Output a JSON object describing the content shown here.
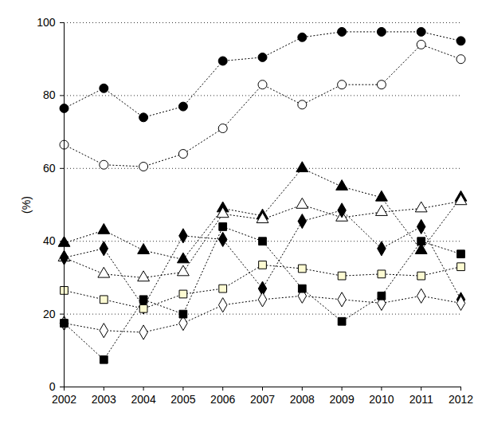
{
  "chart_data": {
    "type": "line",
    "y_label": "(%)",
    "x": [
      2002,
      2003,
      2004,
      2005,
      2006,
      2007,
      2008,
      2009,
      2010,
      2011,
      2012
    ],
    "xlim": [
      2002,
      2012
    ],
    "xticks": [
      2002,
      2003,
      2004,
      2005,
      2006,
      2007,
      2008,
      2009,
      2010,
      2011,
      2012
    ],
    "ylim": [
      0,
      100
    ],
    "yticks": [
      0,
      20,
      40,
      60,
      80,
      100
    ],
    "grid": true,
    "series": [
      {
        "color": "#000000",
        "marker": "circle",
        "line_style": "dotted",
        "values": [
          76.5,
          82,
          74,
          77,
          89.5,
          90.5,
          96,
          97.5,
          97.5,
          97.5,
          95
        ]
      },
      {
        "color": "#ffffff",
        "marker": "circle",
        "line_style": "dotted",
        "values": [
          66.5,
          61,
          60.5,
          64,
          71,
          83,
          77.5,
          83,
          83,
          94,
          90
        ]
      },
      {
        "color": "#000000",
        "marker": "triangle",
        "line_style": "dotted",
        "values": [
          39.5,
          43,
          37.5,
          35,
          49,
          47,
          60,
          55,
          52,
          37.5,
          52
        ]
      },
      {
        "color": "#ffffff",
        "marker": "triangle",
        "line_style": "dotted",
        "values": [
          35.5,
          31,
          30,
          31.5,
          47.5,
          46,
          50,
          46.5,
          48,
          49,
          51
        ]
      },
      {
        "color": "#000000",
        "marker": "diamond",
        "line_style": "dotted",
        "values": [
          35.5,
          38,
          22,
          41.5,
          40.5,
          27,
          45.5,
          48.5,
          38,
          44,
          24
        ]
      },
      {
        "color": "#ffffff",
        "marker": "diamond",
        "line_style": "dotted",
        "values": [
          17.5,
          15.5,
          15,
          17.5,
          22.5,
          24,
          25,
          24,
          23,
          25,
          23
        ]
      },
      {
        "color": "#000000",
        "marker": "square",
        "line_style": "dotted",
        "values": [
          17.5,
          7.5,
          24,
          20,
          44,
          40,
          27,
          18,
          25,
          40,
          36.5
        ]
      },
      {
        "color": "#fdfbd2",
        "marker": "square",
        "line_style": "dotted",
        "values": [
          26.5,
          24,
          21.5,
          25.5,
          27,
          33.5,
          32.5,
          30.5,
          31,
          30.5,
          33
        ]
      }
    ]
  }
}
